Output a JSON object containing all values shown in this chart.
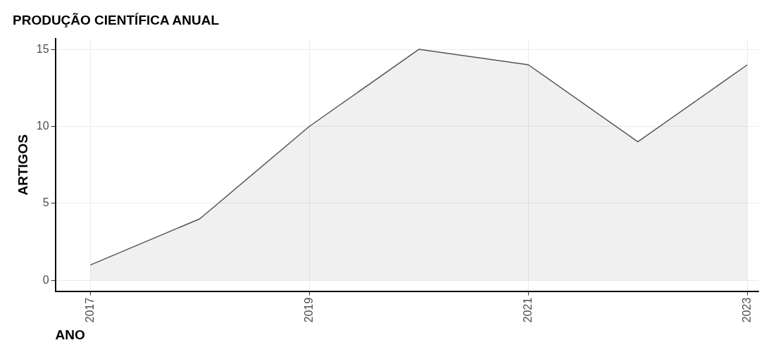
{
  "chart_data": {
    "type": "area",
    "title": "PRODUÇÃO CIENTÍFICA ANUAL",
    "xlabel": "ANO",
    "ylabel": "ARTIGOS",
    "x": [
      2017,
      2018,
      2019,
      2020,
      2021,
      2022,
      2023
    ],
    "series": [
      {
        "color": "#555555",
        "values": [
          1,
          4,
          10,
          15,
          14,
          9,
          14
        ]
      }
    ],
    "xlim": [
      2016.68,
      2023.1
    ],
    "ylim": [
      -0.7,
      15.7
    ],
    "xticks": [
      2017,
      2019,
      2021,
      2023
    ],
    "yticks": [
      0,
      5,
      10,
      15
    ],
    "grid": true
  }
}
